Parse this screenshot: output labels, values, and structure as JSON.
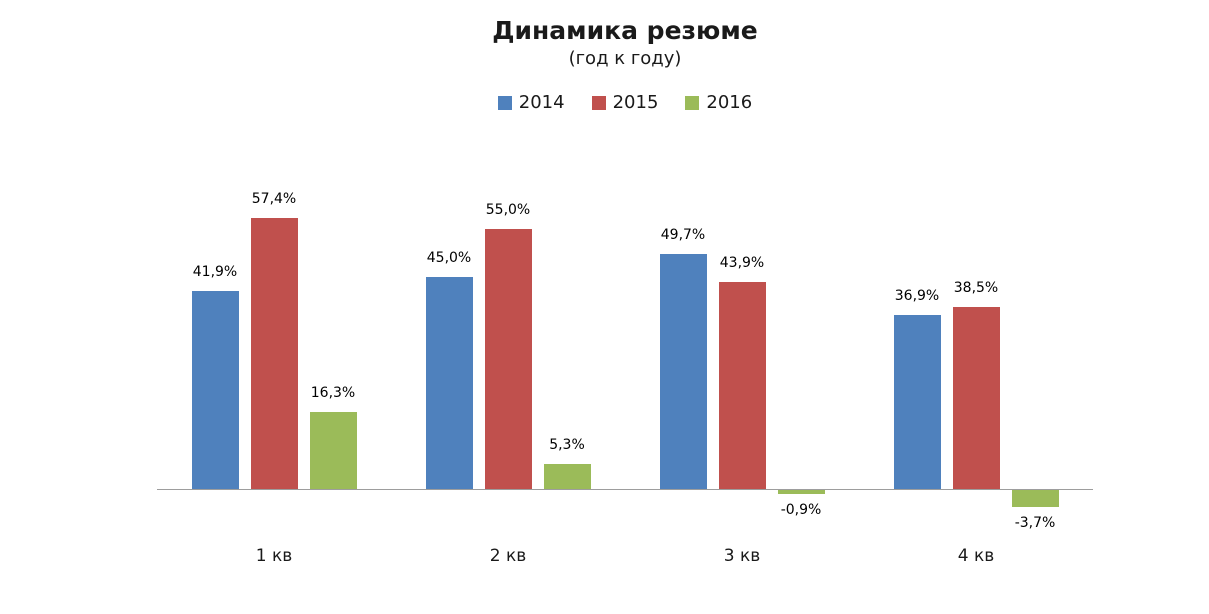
{
  "header": {
    "title": "Динамика резюме",
    "subtitle": "(год к году)"
  },
  "chart_data": {
    "type": "bar",
    "title": "Динамика резюме",
    "subtitle": "(год к году)",
    "categories": [
      "1 кв",
      "2 кв",
      "3 кв",
      "4 кв"
    ],
    "series": [
      {
        "name": "2014",
        "color": "#4f81bd",
        "values": [
          41.9,
          45.0,
          49.7,
          36.9
        ],
        "labels": [
          "41,9%",
          "45,0%",
          "49,7%",
          "36,9%"
        ]
      },
      {
        "name": "2015",
        "color": "#c0504d",
        "values": [
          57.4,
          55.0,
          43.9,
          38.5
        ],
        "labels": [
          "57,4%",
          "55,0%",
          "43,9%",
          "38,5%"
        ]
      },
      {
        "name": "2016",
        "color": "#9bbb59",
        "values": [
          16.3,
          5.3,
          -0.9,
          -3.7
        ],
        "labels": [
          "16,3%",
          "5,3%",
          "-0,9%",
          "-3,7%"
        ]
      }
    ],
    "legend": [
      "2014",
      "2015",
      "2016"
    ],
    "legend_position": "top",
    "value_format": "percent, comma decimal separator",
    "data_labels": true,
    "grid": false,
    "y_axis_visible": false,
    "ylim": [
      -10,
      65
    ],
    "axis_color": "#9d9d9d",
    "background": "#ffffff"
  }
}
